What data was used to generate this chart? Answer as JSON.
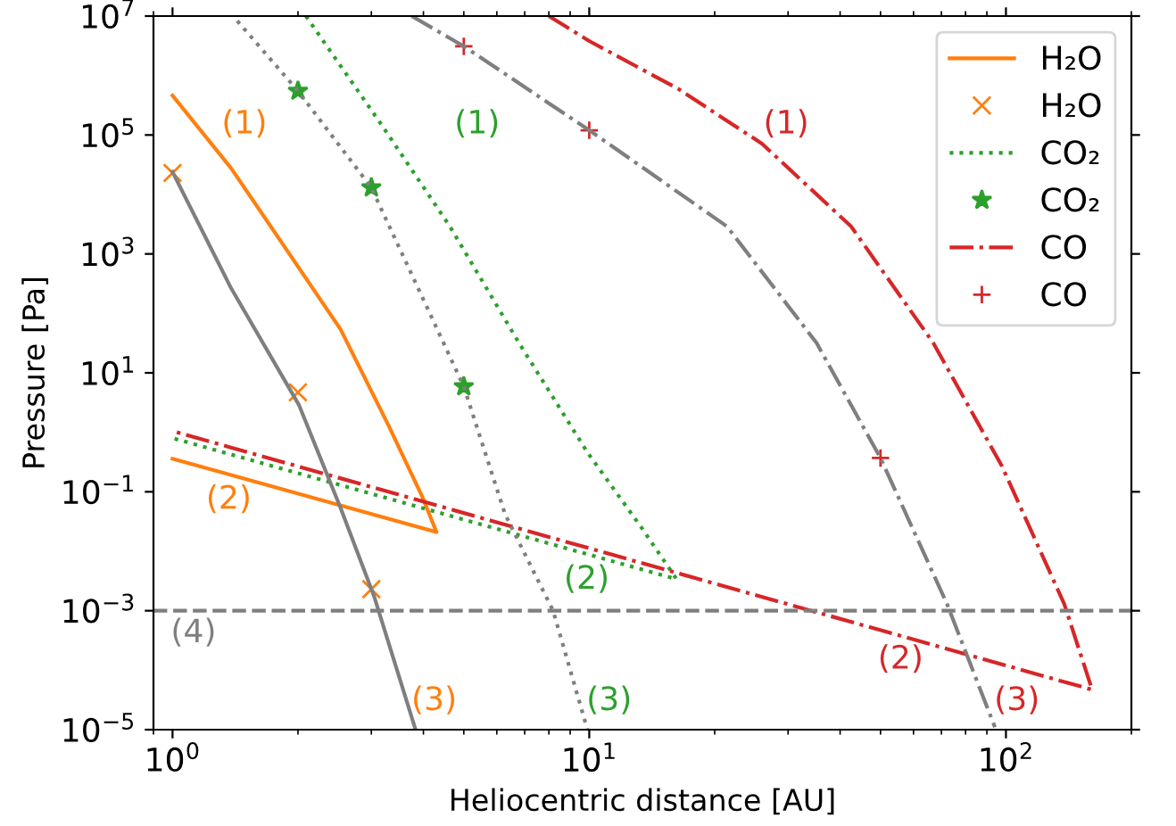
{
  "chart_data": {
    "type": "line",
    "xlabel": "Heliocentric distance [AU]",
    "ylabel": "Pressure [Pa]",
    "log": "xy",
    "xlim": [
      0.9,
      200
    ],
    "ylim": [
      1e-05,
      10000000.0
    ],
    "xticks": [
      {
        "value": 1,
        "label": "10$^{0}$"
      },
      {
        "value": 10,
        "label": "10$^{1}$"
      },
      {
        "value": 100,
        "label": "10$^{2}$"
      }
    ],
    "yticks": [
      {
        "value": 1e-05,
        "label": "10$^{−5}$"
      },
      {
        "value": 0.001,
        "label": "10$^{−3}$"
      },
      {
        "value": 0.1,
        "label": "10$^{−1}$"
      },
      {
        "value": 10,
        "label": "10$^{1}$"
      },
      {
        "value": 1000,
        "label": "10$^{3}$"
      },
      {
        "value": 100000,
        "label": "10$^{5}$"
      },
      {
        "value": 10000000,
        "label": "10$^{7}$"
      }
    ],
    "grid": false,
    "legend": "top right",
    "series": [
      {
        "name": "H₂O",
        "line_style": "solid",
        "color": "#ff7f0e",
        "x": [
          1.0,
          1.38,
          1.86,
          2.53,
          3.3,
          3.98,
          4.3,
          1.0
        ],
        "values": [
          460000,
          28000,
          1300,
          54,
          1.3,
          0.081,
          0.021,
          0.36
        ]
      },
      {
        "name": "H₂O",
        "type": "scatter",
        "marker": "cross",
        "color": "#ff7f0e",
        "x": [
          1,
          2,
          3
        ],
        "values": [
          23000,
          4.7,
          0.0023
        ]
      },
      {
        "name": "CO₂",
        "line_style": "dotted",
        "color": "#2ca02c",
        "x": [
          2.09,
          3.17,
          4.63,
          6.78,
          9.9,
          13.4,
          16.2,
          1.0
        ],
        "values": [
          10000000,
          150000,
          2900,
          32,
          0.46,
          0.024,
          0.0034,
          0.8
        ]
      },
      {
        "name": "CO₂",
        "type": "scatter",
        "marker": "star",
        "color": "#2ca02c",
        "x": [
          2,
          3,
          5
        ],
        "values": [
          550000,
          13000,
          5.9
        ]
      },
      {
        "name": "CO",
        "line_style": "dashdot",
        "color": "#d62728",
        "x": [
          8,
          10,
          16.4,
          26,
          42.5,
          66.9,
          97.8,
          138,
          161,
          1.0
        ],
        "values": [
          10000000,
          3800000,
          590000,
          71000,
          2900,
          32,
          0.27,
          0.0013,
          4.7e-05,
          1.05
        ]
      },
      {
        "name": "CO",
        "type": "scatter",
        "marker": "plus",
        "color": "#d62728",
        "x": [
          5,
          10,
          50
        ],
        "values": [
          3100000,
          120000,
          0.37
        ]
      },
      {
        "line_style": "solid",
        "color": "#7f7f7f",
        "x": [
          1.0,
          1.38,
          2.01,
          2.53,
          3.05,
          3.83
        ],
        "values": [
          24000,
          270,
          2.9,
          0.054,
          0.0017,
          1e-05
        ]
      },
      {
        "line_style": "dotted",
        "color": "#7f7f7f",
        "x": [
          1.43,
          2,
          3,
          5,
          6.28,
          8.19,
          9.9
        ],
        "values": [
          8300000,
          550000,
          13000,
          5.9,
          0.042,
          0.001,
          1e-05
        ]
      },
      {
        "line_style": "dashdot",
        "color": "#7f7f7f",
        "x": [
          3.75,
          5,
          10,
          21.4,
          35.1,
          50,
          72.2,
          94.1
        ],
        "values": [
          10000000,
          3100000,
          120000,
          2900,
          32,
          0.37,
          0.0013,
          1.1e-05
        ]
      }
    ],
    "ref_lines": [
      {
        "axis": "y",
        "value": 0.001,
        "color": "#7f7f7f",
        "line_style": "dashed"
      }
    ],
    "annotations": [
      "(1)",
      "(1)",
      "(1)",
      "(2)",
      "(2)",
      "(2)",
      "(3)",
      "(3)",
      "(3)",
      "(4)"
    ]
  }
}
